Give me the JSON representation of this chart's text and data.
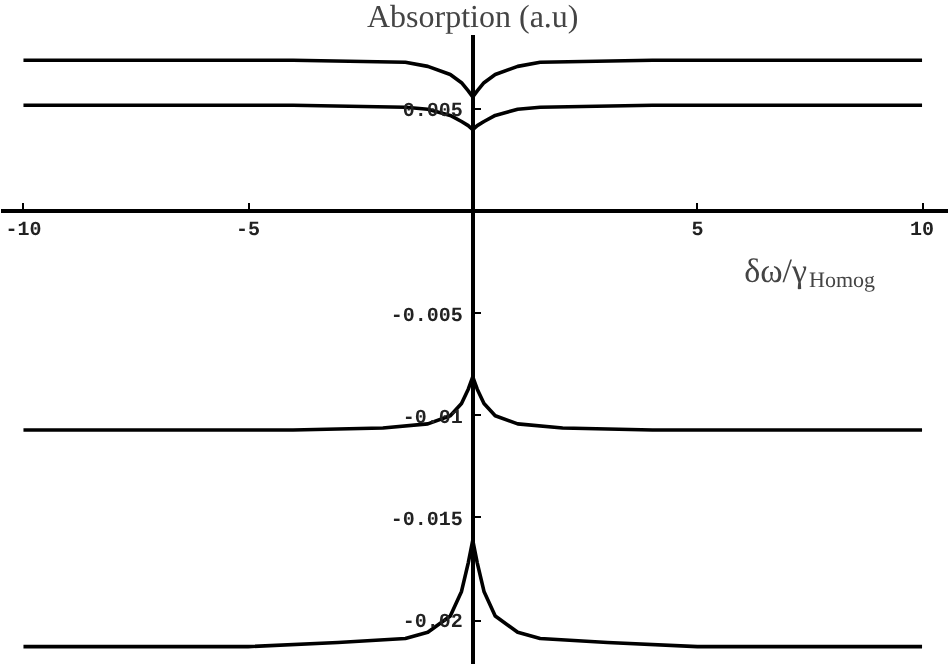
{
  "chart_data": {
    "type": "line",
    "ylabel": "Absorption (a.u)",
    "xlabel": "δω/γ$_{Homog}$",
    "marker": "none",
    "line_style": "solid",
    "xlim": [
      -10.5,
      10.6
    ],
    "ylim": [
      -0.0222,
      0.0103
    ],
    "xticks": [
      -10,
      -5,
      5,
      10
    ],
    "yticks": [
      0.005,
      -0.005,
      -0.01,
      -0.015,
      -0.02
    ],
    "series": [
      {
        "color": "#000000",
        "x": [
          -10,
          -4,
          -1.5,
          -1,
          -0.5,
          -0.25,
          -0.1,
          0,
          0.1,
          0.25,
          0.5,
          1,
          1.5,
          4,
          10
        ],
        "values": [
          0.0074,
          0.0074,
          0.0073,
          0.0071,
          0.0067,
          0.0063,
          0.0059,
          0.0056,
          0.0059,
          0.0063,
          0.0067,
          0.0071,
          0.0073,
          0.0074,
          0.0074
        ]
      },
      {
        "color": "#000000",
        "x": [
          -10,
          -4,
          -1.5,
          -1,
          -0.5,
          -0.25,
          -0.1,
          0,
          0.1,
          0.25,
          0.5,
          1,
          1.5,
          4,
          10
        ],
        "values": [
          0.0052,
          0.0052,
          0.0051,
          0.005,
          0.0047,
          0.0044,
          0.0042,
          0.004,
          0.0042,
          0.0044,
          0.0047,
          0.005,
          0.0051,
          0.0052,
          0.0052
        ]
      },
      {
        "color": "#000000",
        "x": [
          -10,
          -4,
          -2,
          -1,
          -0.5,
          -0.25,
          -0.1,
          0,
          0.1,
          0.25,
          0.5,
          1,
          2,
          4,
          10
        ],
        "values": [
          -0.0107,
          -0.0107,
          -0.0106,
          -0.0104,
          -0.01,
          -0.0094,
          -0.0087,
          -0.0081,
          -0.0087,
          -0.0094,
          -0.01,
          -0.0104,
          -0.0106,
          -0.0107,
          -0.0107
        ]
      },
      {
        "color": "#000000",
        "x": [
          -10,
          -5,
          -3,
          -1.5,
          -1,
          -0.5,
          -0.25,
          -0.1,
          0,
          0.1,
          0.25,
          0.5,
          1,
          1.5,
          3,
          5,
          10
        ],
        "values": [
          -0.0213,
          -0.0213,
          -0.0211,
          -0.0209,
          -0.0206,
          -0.0198,
          -0.0186,
          -0.0172,
          -0.0161,
          -0.0172,
          -0.0186,
          -0.0198,
          -0.0206,
          -0.0209,
          -0.0211,
          -0.0213,
          -0.0213
        ]
      }
    ]
  }
}
